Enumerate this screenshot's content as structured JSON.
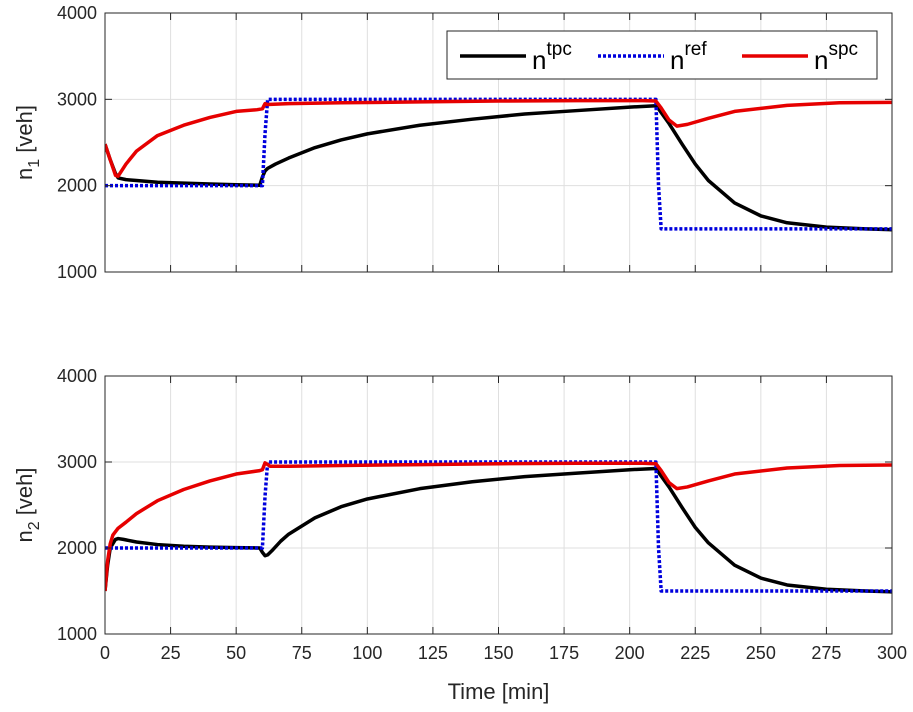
{
  "chart_data": [
    {
      "type": "line",
      "ylabel_main": "n",
      "ylabel_sub": "1",
      "ylabel_unit": "[veh]",
      "xlim": [
        0,
        300
      ],
      "ylim": [
        1000,
        4000
      ],
      "xticks": [
        0,
        25,
        50,
        75,
        100,
        125,
        150,
        175,
        200,
        225,
        250,
        275,
        300
      ],
      "yticks": [
        1000,
        2000,
        3000,
        4000
      ],
      "show_xticklabels": false,
      "grid": true,
      "legend": {
        "position": "top-right",
        "entries": [
          {
            "base": "n",
            "sup": "tpc",
            "color": "#000000",
            "style": "solid"
          },
          {
            "base": "n",
            "sup": "ref",
            "color": "#0000dd",
            "style": "dotted"
          },
          {
            "base": "n",
            "sup": "spc",
            "color": "#e60000",
            "style": "solid"
          }
        ]
      },
      "series": [
        {
          "name": "n_tpc",
          "color": "#000000",
          "style": "solid",
          "x": [
            0,
            2,
            4,
            5,
            8,
            12,
            20,
            30,
            40,
            50,
            59,
            60,
            61,
            62,
            65,
            70,
            80,
            90,
            100,
            120,
            140,
            160,
            180,
            200,
            210,
            211,
            215,
            220,
            225,
            230,
            240,
            250,
            260,
            275,
            290,
            300
          ],
          "y": [
            2480,
            2300,
            2140,
            2090,
            2070,
            2060,
            2040,
            2030,
            2020,
            2010,
            2005,
            2100,
            2170,
            2200,
            2250,
            2320,
            2440,
            2530,
            2600,
            2700,
            2770,
            2830,
            2870,
            2910,
            2925,
            2890,
            2720,
            2480,
            2250,
            2060,
            1800,
            1650,
            1570,
            1520,
            1500,
            1490
          ]
        },
        {
          "name": "n_ref",
          "color": "#0000dd",
          "style": "dotted",
          "x": [
            0,
            60,
            61,
            62,
            210,
            211,
            212,
            300
          ],
          "y": [
            2000,
            2000,
            2600,
            3000,
            3000,
            2000,
            1500,
            1500
          ]
        },
        {
          "name": "n_spc",
          "color": "#e60000",
          "style": "solid",
          "x": [
            0,
            2,
            4,
            5,
            8,
            12,
            20,
            30,
            40,
            50,
            58,
            60,
            61,
            62,
            70,
            90,
            120,
            150,
            180,
            205,
            210,
            212,
            215,
            218,
            222,
            230,
            240,
            260,
            280,
            300
          ],
          "y": [
            2480,
            2300,
            2120,
            2110,
            2250,
            2400,
            2580,
            2700,
            2790,
            2860,
            2880,
            2890,
            2950,
            2940,
            2950,
            2960,
            2970,
            2980,
            2985,
            2985,
            2980,
            2900,
            2760,
            2690,
            2710,
            2780,
            2860,
            2930,
            2960,
            2965
          ]
        }
      ]
    },
    {
      "type": "line",
      "ylabel_main": "n",
      "ylabel_sub": "2",
      "ylabel_unit": "[veh]",
      "xlabel": "Time [min]",
      "xlim": [
        0,
        300
      ],
      "ylim": [
        1000,
        4000
      ],
      "xticks": [
        0,
        25,
        50,
        75,
        100,
        125,
        150,
        175,
        200,
        225,
        250,
        275,
        300
      ],
      "yticks": [
        1000,
        2000,
        3000,
        4000
      ],
      "show_xticklabels": true,
      "grid": true,
      "series": [
        {
          "name": "n_tpc",
          "color": "#000000",
          "style": "solid",
          "x": [
            0,
            1,
            2,
            4,
            5,
            7,
            12,
            20,
            30,
            40,
            50,
            59,
            60,
            61,
            62,
            64,
            67,
            70,
            80,
            90,
            100,
            120,
            140,
            160,
            180,
            200,
            210,
            211,
            215,
            220,
            225,
            230,
            240,
            250,
            260,
            275,
            290,
            300
          ],
          "y": [
            1500,
            1800,
            2000,
            2100,
            2110,
            2100,
            2070,
            2040,
            2020,
            2010,
            2005,
            2000,
            1950,
            1910,
            1920,
            1980,
            2080,
            2160,
            2350,
            2480,
            2570,
            2690,
            2770,
            2830,
            2870,
            2910,
            2925,
            2880,
            2710,
            2470,
            2240,
            2060,
            1800,
            1650,
            1570,
            1520,
            1500,
            1490
          ]
        },
        {
          "name": "n_ref",
          "color": "#0000dd",
          "style": "dotted",
          "x": [
            0,
            60,
            61,
            62,
            210,
            211,
            212,
            300
          ],
          "y": [
            2000,
            2000,
            2600,
            3000,
            3000,
            2000,
            1500,
            1500
          ]
        },
        {
          "name": "n_spc",
          "color": "#e60000",
          "style": "solid",
          "x": [
            0,
            1,
            2,
            3,
            5,
            8,
            12,
            20,
            30,
            40,
            50,
            59,
            60,
            61,
            62,
            63,
            70,
            90,
            120,
            150,
            180,
            205,
            210,
            212,
            215,
            218,
            222,
            230,
            240,
            260,
            280,
            300
          ],
          "y": [
            1500,
            1850,
            2050,
            2150,
            2230,
            2300,
            2400,
            2550,
            2680,
            2780,
            2860,
            2900,
            2910,
            2990,
            2970,
            2950,
            2950,
            2960,
            2970,
            2980,
            2985,
            2985,
            2980,
            2900,
            2760,
            2690,
            2710,
            2780,
            2860,
            2930,
            2960,
            2965
          ]
        }
      ]
    }
  ]
}
